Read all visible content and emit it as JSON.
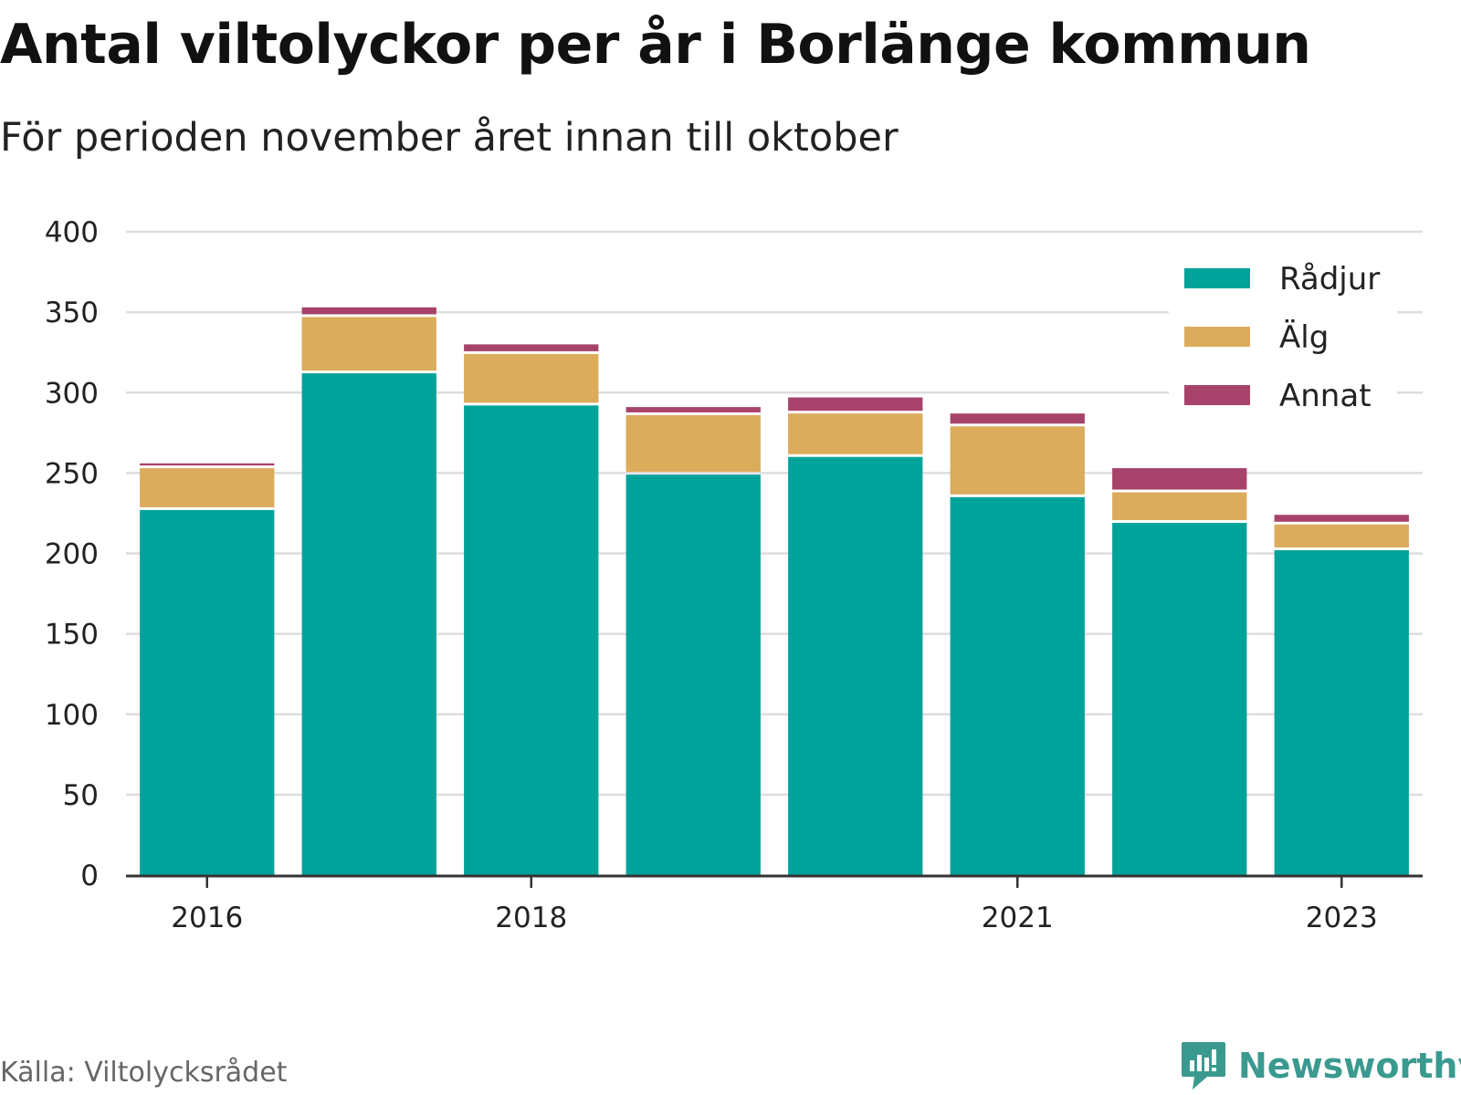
{
  "title": "Antal viltolyckor per år i Borlänge kommun",
  "subtitle": "För perioden november året innan till oktober",
  "source": "Källa: Viltolycksrådet",
  "brand": "Newsworthy",
  "colors": {
    "Rådjur": "#00a39a",
    "Älg": "#dbac5c",
    "Annat": "#a7436a",
    "grid": "#dddddd",
    "axis": "#333333",
    "brand": "#3a9a90"
  },
  "chart_data": {
    "type": "bar",
    "stacked": true,
    "title": "Antal viltolyckor per år i Borlänge kommun",
    "subtitle": "För perioden november året innan till oktober",
    "categories": [
      "2016",
      "2017",
      "2018",
      "2019",
      "2020",
      "2021",
      "2022",
      "2023"
    ],
    "x_tick_labels": [
      "2016",
      "",
      "2018",
      "",
      "",
      "2021",
      "",
      "2023"
    ],
    "series": [
      {
        "name": "Rådjur",
        "values": [
          227,
          312,
          292,
          249,
          260,
          235,
          219,
          202
        ]
      },
      {
        "name": "Älg",
        "values": [
          26,
          35,
          32,
          37,
          27,
          44,
          19,
          16
        ]
      },
      {
        "name": "Annat",
        "values": [
          3,
          6,
          6,
          5,
          10,
          8,
          15,
          6
        ]
      }
    ],
    "y_ticks": [
      0,
      50,
      100,
      150,
      200,
      250,
      300,
      350,
      400
    ],
    "ylim": [
      0,
      400
    ],
    "xlabel": "",
    "ylabel": "",
    "grid": true,
    "legend_position": "top-right"
  }
}
